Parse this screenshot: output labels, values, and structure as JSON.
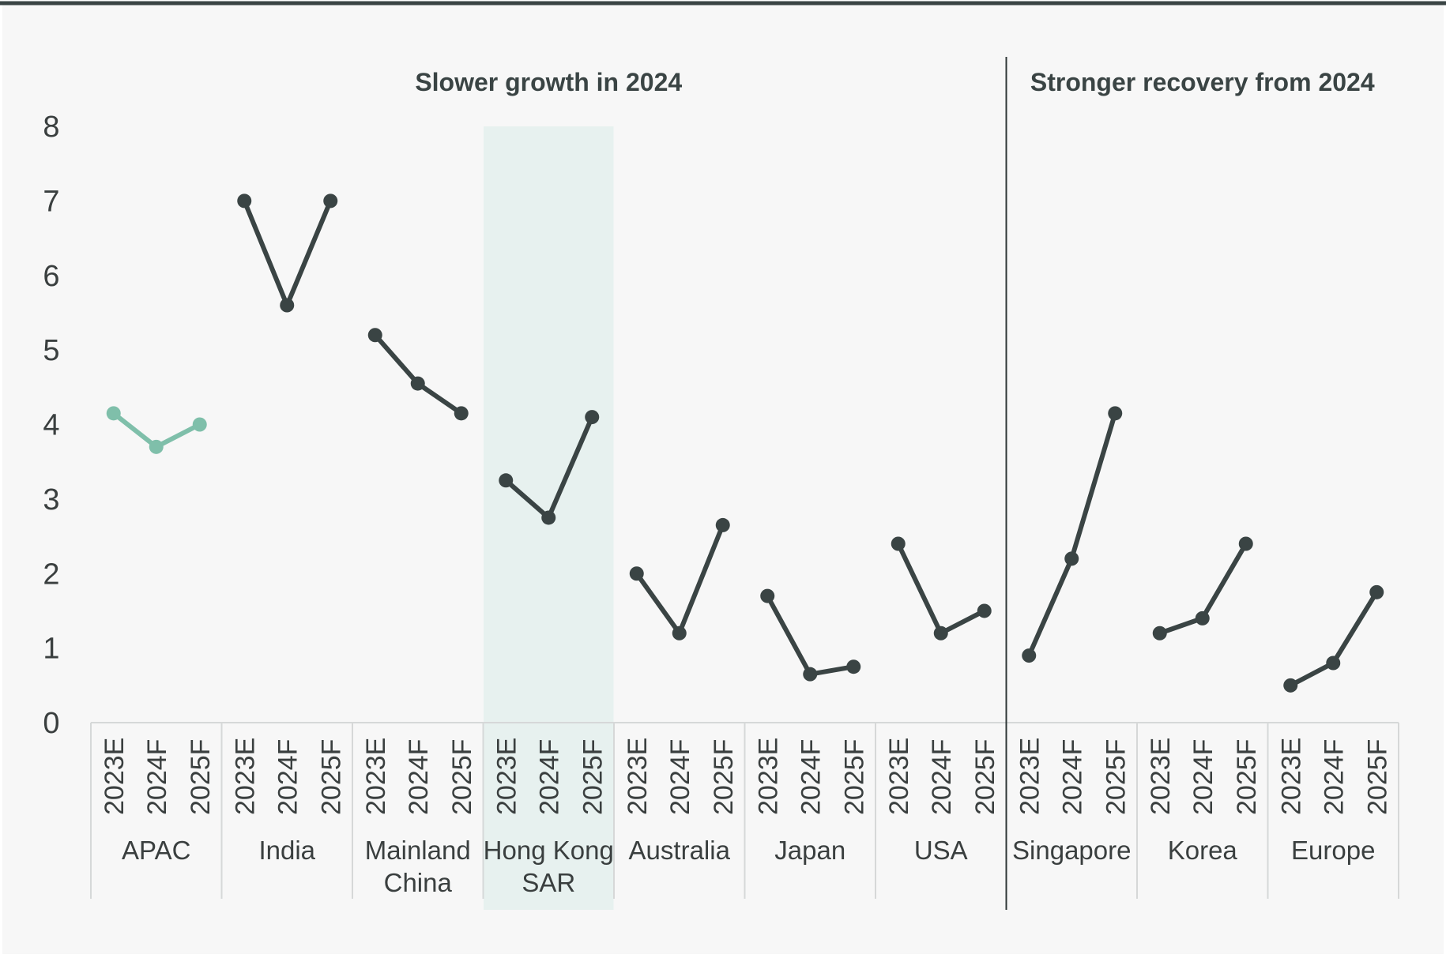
{
  "chart_data": {
    "type": "line",
    "ylim": [
      0,
      8
    ],
    "yticks": [
      "0",
      "1",
      "2",
      "3",
      "4",
      "5",
      "6",
      "7",
      "8"
    ],
    "x_labels": [
      "2023E",
      "2024F",
      "2025F"
    ],
    "sections": [
      {
        "label": "Slower growth in 2024",
        "groups": 7
      },
      {
        "label": "Stronger recovery from 2024",
        "groups": 3
      }
    ],
    "highlight_group": "Hong Kong SAR",
    "groups": [
      {
        "name": "APAC",
        "lines": [
          "APAC"
        ],
        "values": [
          4.15,
          3.7,
          4.0
        ],
        "color": "#7fbfaa"
      },
      {
        "name": "India",
        "lines": [
          "India"
        ],
        "values": [
          7.0,
          5.6,
          7.0
        ],
        "color": "#3a4444"
      },
      {
        "name": "Mainland China",
        "lines": [
          "Mainland",
          "China"
        ],
        "values": [
          5.2,
          4.55,
          4.15
        ],
        "color": "#3a4444"
      },
      {
        "name": "Hong Kong SAR",
        "lines": [
          "Hong Kong",
          "SAR"
        ],
        "values": [
          3.25,
          2.75,
          4.1
        ],
        "color": "#3a4444"
      },
      {
        "name": "Australia",
        "lines": [
          "Australia"
        ],
        "values": [
          2.0,
          1.2,
          2.65
        ],
        "color": "#3a4444"
      },
      {
        "name": "Japan",
        "lines": [
          "Japan"
        ],
        "values": [
          1.7,
          0.65,
          0.75
        ],
        "color": "#3a4444"
      },
      {
        "name": "USA",
        "lines": [
          "USA"
        ],
        "values": [
          2.4,
          1.2,
          1.5
        ],
        "color": "#3a4444"
      },
      {
        "name": "Singapore",
        "lines": [
          "Singapore"
        ],
        "values": [
          0.9,
          2.2,
          4.15
        ],
        "color": "#3a4444"
      },
      {
        "name": "Korea",
        "lines": [
          "Korea"
        ],
        "values": [
          1.2,
          1.4,
          2.4
        ],
        "color": "#3a4444"
      },
      {
        "name": "Europe",
        "lines": [
          "Europe"
        ],
        "values": [
          0.5,
          0.8,
          1.75
        ],
        "color": "#3a4444"
      }
    ],
    "colors": {
      "background": "#f7f7f7",
      "highlight_band": "#e7f1ef",
      "line_dark": "#3a4444",
      "line_accent": "#7fbfaa",
      "axis": "#d6d8d8",
      "divider": "#2f3737"
    }
  }
}
